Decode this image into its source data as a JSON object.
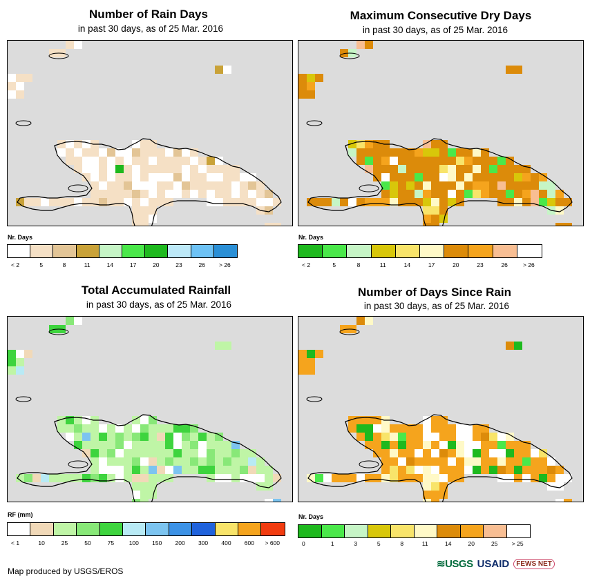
{
  "panels": [
    {
      "title": "Number of Rain Days",
      "subtitle": "in past 30 days, as of 25 Mar. 2016",
      "legend_title": "Nr. Days",
      "legend_colors": [
        "#ffffff",
        "#f5e0c5",
        "#e3c596",
        "#c9a238",
        "#c6f5c6",
        "#4ae84a",
        "#1eb91e",
        "#bde9f8",
        "#6dc2f5",
        "#2a8fd6"
      ],
      "legend_labels": [
        "< 2",
        "5",
        "8",
        "11",
        "14",
        "17",
        "20",
        "23",
        "26",
        "> 26"
      ],
      "base_color": "#f5e0c5",
      "accents": [
        {
          "c": "#ffffff",
          "n": 40
        },
        {
          "c": "#e3c596",
          "n": 10
        },
        {
          "c": "#c9a238",
          "n": 3
        },
        {
          "c": "#1eb91e",
          "n": 1
        },
        {
          "c": "#bde9f8",
          "n": 1
        },
        {
          "c": "#4ae84a",
          "n": 1
        }
      ]
    },
    {
      "title": "Maximum Consecutive Dry Days",
      "subtitle": "in past 30 days, as of 25 Mar. 2016",
      "legend_title": "Nr. Days",
      "legend_colors": [
        "#1eb91e",
        "#4ae84a",
        "#c6f5c6",
        "#d8c70a",
        "#f8e46a",
        "#fff9c7",
        "#dc8b0a",
        "#f5a41d",
        "#f8be93",
        "#ffffff"
      ],
      "legend_labels": [
        "< 2",
        "5",
        "8",
        "11",
        "14",
        "17",
        "20",
        "23",
        "26",
        "> 26"
      ],
      "base_color": "#dc8b0a",
      "accents": [
        {
          "c": "#f5a41d",
          "n": 14
        },
        {
          "c": "#fff9c7",
          "n": 10
        },
        {
          "c": "#d8c70a",
          "n": 12
        },
        {
          "c": "#f8be93",
          "n": 8
        },
        {
          "c": "#f8e46a",
          "n": 8
        },
        {
          "c": "#4ae84a",
          "n": 5
        },
        {
          "c": "#c6f5c6",
          "n": 4
        },
        {
          "c": "#ffffff",
          "n": 6
        }
      ]
    },
    {
      "title": "Total Accumulated Rainfall",
      "subtitle": "in past 30 days, as of 25 Mar. 2016",
      "legend_title": "RF (mm)",
      "legend_colors": [
        "#ffffff",
        "#f1d9b8",
        "#bff5a6",
        "#88e878",
        "#3ed43e",
        "#b8eaf5",
        "#7cc4f0",
        "#3c92e6",
        "#1f62dc",
        "#f8e46a",
        "#f5a41d",
        "#f23c10"
      ],
      "legend_labels": [
        "< 1",
        "10",
        "25",
        "50",
        "75",
        "100",
        "150",
        "200",
        "300",
        "400",
        "600",
        "> 600"
      ],
      "base_color": "#bff5a6",
      "accents": [
        {
          "c": "#ffffff",
          "n": 20
        },
        {
          "c": "#88e878",
          "n": 18
        },
        {
          "c": "#3ed43e",
          "n": 10
        },
        {
          "c": "#f1d9b8",
          "n": 8
        },
        {
          "c": "#7cc4f0",
          "n": 4
        },
        {
          "c": "#b8eaf5",
          "n": 3
        }
      ]
    },
    {
      "title": "Number of Days Since Rain",
      "subtitle": "in past 30 days, as of 25 Mar. 2016",
      "legend_title": "Nr. Days",
      "legend_colors": [
        "#1eb91e",
        "#4ae84a",
        "#c6f5c6",
        "#d8c70a",
        "#f8e46a",
        "#fff9c7",
        "#dc8b0a",
        "#f5a41d",
        "#f8be93",
        "#ffffff"
      ],
      "legend_labels": [
        "0",
        "1",
        "3",
        "5",
        "8",
        "11",
        "14",
        "20",
        "25",
        "> 25"
      ],
      "base_color": "#f5a41d",
      "accents": [
        {
          "c": "#ffffff",
          "n": 22
        },
        {
          "c": "#fff9c7",
          "n": 12
        },
        {
          "c": "#1eb91e",
          "n": 8
        },
        {
          "c": "#f8e46a",
          "n": 6
        },
        {
          "c": "#4ae84a",
          "n": 3
        },
        {
          "c": "#dc8b0a",
          "n": 4
        }
      ]
    }
  ],
  "footer": "Map produced by USGS/EROS",
  "logos": {
    "usgs": "≋USGS",
    "usaid": "USAID",
    "fews": "FEWS NET"
  }
}
